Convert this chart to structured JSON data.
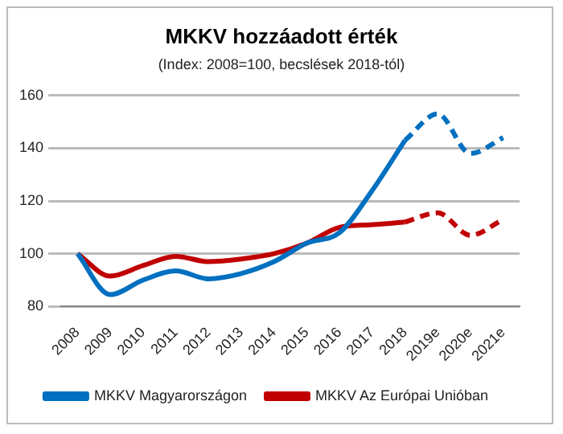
{
  "chart_data": {
    "type": "line",
    "title": "MKKV hozzáadott érték",
    "subtitle": "(Index: 2008=100, becslések 2018-tól)",
    "categories": [
      "2008",
      "2009",
      "2010",
      "2011",
      "2012",
      "2013",
      "2014",
      "2015",
      "2016",
      "2017",
      "2018",
      "2019e",
      "2020e",
      "2021e"
    ],
    "series": [
      {
        "name": "MKKV Magyarországon",
        "color": "#0070c0",
        "line_style": "solid",
        "values": [
          100,
          84.5,
          90,
          93.5,
          90.5,
          92.5,
          97,
          104,
          108,
          124,
          143,
          null,
          null,
          null
        ]
      },
      {
        "name": "MKKV Az Európai Unióban",
        "color": "#c00000",
        "line_style": "solid",
        "values": [
          100,
          91.5,
          95.5,
          99,
          97,
          98,
          100,
          104,
          110,
          111,
          112,
          null,
          null,
          null
        ]
      },
      {
        "color": "#0070c0",
        "line_style": "dashed",
        "values": [
          null,
          null,
          null,
          null,
          null,
          null,
          null,
          null,
          null,
          null,
          143,
          153,
          138,
          144
        ]
      },
      {
        "color": "#c00000",
        "line_style": "dashed",
        "values": [
          null,
          null,
          null,
          null,
          null,
          null,
          null,
          null,
          null,
          null,
          112,
          115.5,
          107,
          113
        ]
      }
    ],
    "ylim": [
      80,
      160
    ],
    "yticks": [
      80,
      100,
      120,
      140,
      160
    ],
    "grid": "y",
    "legend": "bottom",
    "marker": "none"
  }
}
